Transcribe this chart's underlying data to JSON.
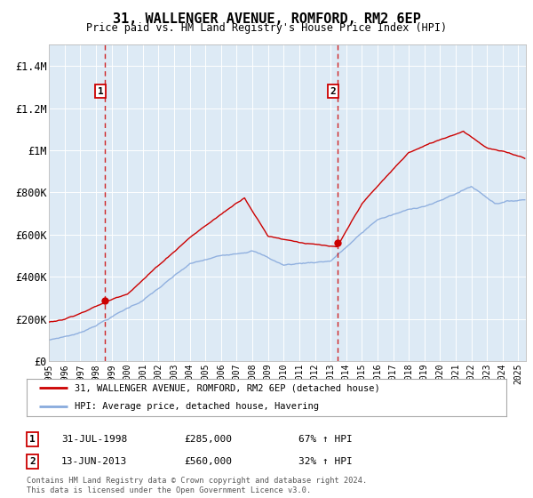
{
  "title": "31, WALLENGER AVENUE, ROMFORD, RM2 6EP",
  "subtitle": "Price paid vs. HM Land Registry's House Price Index (HPI)",
  "legend_line1": "31, WALLENGER AVENUE, ROMFORD, RM2 6EP (detached house)",
  "legend_line2": "HPI: Average price, detached house, Havering",
  "annotation1_label": "1",
  "annotation1_date": "31-JUL-1998",
  "annotation1_price": "£285,000",
  "annotation1_hpi": "67% ↑ HPI",
  "annotation1_year": 1998.58,
  "annotation1_value": 285000,
  "annotation2_label": "2",
  "annotation2_date": "13-JUN-2013",
  "annotation2_price": "£560,000",
  "annotation2_hpi": "32% ↑ HPI",
  "annotation2_year": 2013.45,
  "annotation2_value": 560000,
  "ylim": [
    0,
    1500000
  ],
  "xlim_start": 1995.0,
  "xlim_end": 2025.5,
  "plot_bg": "#ddeaf5",
  "red_line_color": "#cc0000",
  "blue_line_color": "#88aadd",
  "vline_color": "#cc0000",
  "footnote": "Contains HM Land Registry data © Crown copyright and database right 2024.\nThis data is licensed under the Open Government Licence v3.0.",
  "yticks": [
    0,
    200000,
    400000,
    600000,
    800000,
    1000000,
    1200000,
    1400000
  ],
  "ytick_labels": [
    "£0",
    "£200K",
    "£400K",
    "£600K",
    "£800K",
    "£1M",
    "£1.2M",
    "£1.4M"
  ],
  "xticks": [
    1995,
    1996,
    1997,
    1998,
    1999,
    2000,
    2001,
    2002,
    2003,
    2004,
    2005,
    2006,
    2007,
    2008,
    2009,
    2010,
    2011,
    2012,
    2013,
    2014,
    2015,
    2016,
    2017,
    2018,
    2019,
    2020,
    2021,
    2022,
    2023,
    2024,
    2025
  ]
}
